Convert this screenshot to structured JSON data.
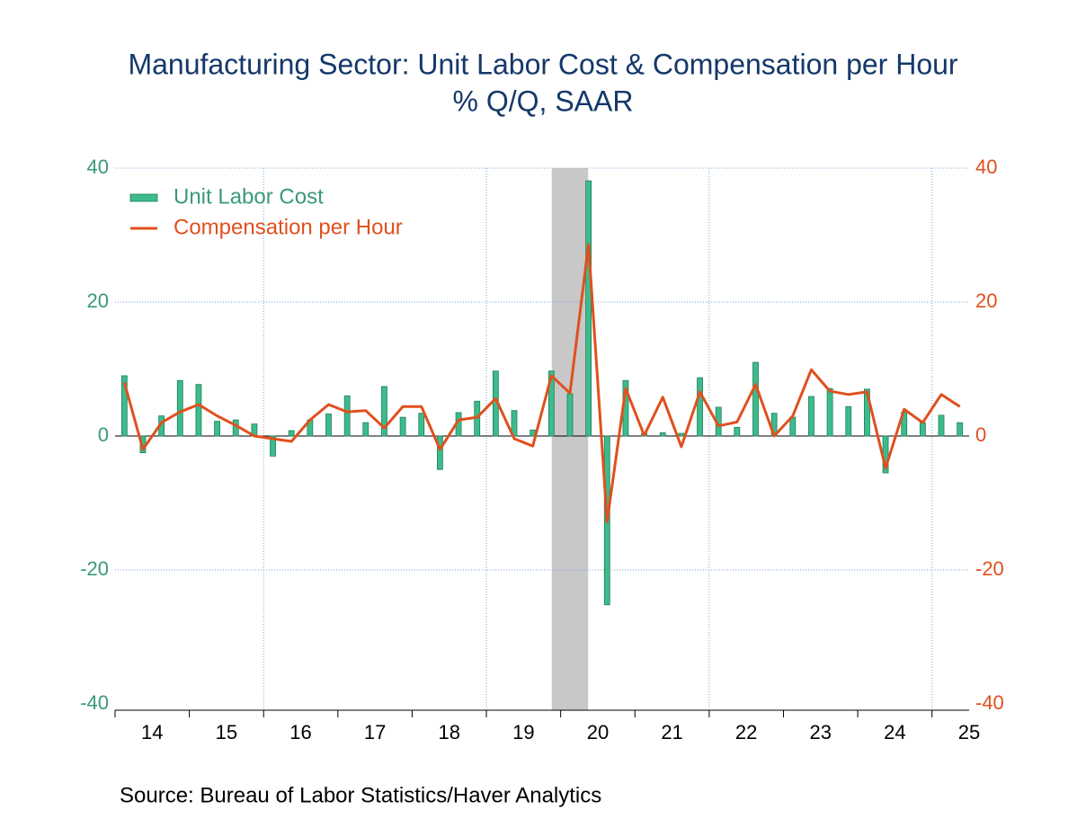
{
  "chart_data": {
    "type": "bar_line",
    "title": "Manufacturing Sector: Unit Labor Cost & Compensation per Hour",
    "subtitle": "% Q/Q, SAAR",
    "source": "Source:  Bureau of Labor Statistics/Haver Analytics",
    "x": [
      2014,
      2014.25,
      2014.5,
      2014.75,
      2015,
      2015.25,
      2015.5,
      2015.75,
      2016,
      2016.25,
      2016.5,
      2016.75,
      2017,
      2017.25,
      2017.5,
      2017.75,
      2018,
      2018.25,
      2018.5,
      2018.75,
      2019,
      2019.25,
      2019.5,
      2019.75,
      2020,
      2020.25,
      2020.5,
      2020.75,
      2021,
      2021.25,
      2021.5,
      2021.75,
      2022,
      2022.25,
      2022.5,
      2022.75,
      2023,
      2023.25,
      2023.5,
      2023.75,
      2024,
      2024.25,
      2024.5,
      2024.75,
      2025,
      2025.25
    ],
    "series": [
      {
        "name": "Unit Labor Cost",
        "type": "bar",
        "color": "#3dbb8c",
        "values": [
          9.0,
          -2.5,
          3.0,
          8.3,
          7.7,
          2.2,
          2.4,
          1.8,
          -3.0,
          0.8,
          2.4,
          3.3,
          6.0,
          2.0,
          7.4,
          2.8,
          3.4,
          -5.0,
          3.5,
          5.2,
          9.7,
          3.8,
          0.9,
          9.7,
          6.3,
          38.1,
          -25.2,
          8.3,
          0.4,
          0.5,
          0.4,
          8.7,
          4.3,
          1.3,
          11.0,
          3.4,
          2.8,
          5.9,
          7.1,
          4.4,
          7.0,
          -5.5,
          3.6,
          2.0,
          3.1,
          2.0
        ]
      },
      {
        "name": "Compensation per Hour",
        "type": "line",
        "axis": "y2",
        "color": "#e0501e",
        "values": [
          8.0,
          -2.0,
          2.0,
          3.6,
          4.7,
          3.0,
          1.6,
          0,
          -0.4,
          -0.8,
          2.4,
          4.7,
          3.6,
          3.8,
          1.2,
          4.4,
          4.4,
          -2.0,
          2.4,
          2.8,
          5.6,
          -0.4,
          -1.5,
          9.0,
          6.4,
          28.6,
          -12.8,
          7.1,
          0.1,
          5.8,
          -1.6,
          6.6,
          1.5,
          2.1,
          7.7,
          0,
          3.0,
          9.9,
          6.7,
          6.2,
          6.6,
          -4.8,
          4.0,
          2.0,
          6.2,
          4.4
        ]
      }
    ],
    "xlim": [
      2014,
      2025.5
    ],
    "xticks": [
      2014,
      2015,
      2016,
      2017,
      2018,
      2019,
      2020,
      2021,
      2022,
      2023,
      2024,
      2025
    ],
    "xtick_labels": [
      "14",
      "15",
      "16",
      "17",
      "18",
      "19",
      "20",
      "21",
      "22",
      "23",
      "24",
      "25"
    ],
    "xgrid": [
      2016,
      2019,
      2022,
      2025
    ],
    "recession": [
      2019.88,
      2020.37
    ],
    "ylim": [
      -40,
      40
    ],
    "yticks": [
      -40,
      -20,
      0,
      20,
      40
    ],
    "y2lim": [
      -40,
      40
    ],
    "y2ticks": [
      -40,
      -20,
      0,
      20,
      40
    ],
    "grid": true,
    "legend": "upper left"
  }
}
